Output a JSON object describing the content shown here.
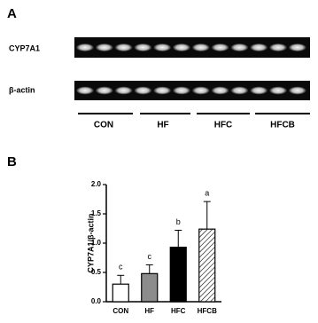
{
  "panel_a": {
    "label": "A",
    "gel_labels": [
      "CYP7A1",
      "β-actin"
    ],
    "groups": [
      "CON",
      "HF",
      "HFC",
      "HFCB"
    ]
  },
  "panel_b": {
    "label": "B"
  },
  "chart_data": {
    "type": "bar",
    "y_label": "CYP7A1/β-actin",
    "categories": [
      "CON",
      "HF",
      "HFC",
      "HFCB"
    ],
    "values": [
      0.3,
      0.48,
      0.93,
      1.24
    ],
    "errors": [
      0.15,
      0.15,
      0.29,
      0.47
    ],
    "annotations": [
      "c",
      "c",
      "b",
      "a"
    ],
    "colors": [
      "#ffffff",
      "#8c8c8c",
      "#000000",
      "#ffffff"
    ],
    "hatch": [
      false,
      false,
      false,
      true
    ],
    "ylim": [
      0,
      2
    ],
    "yticks": [
      {
        "value": 0,
        "label": "0.0"
      },
      0.5,
      {
        "value": 1,
        "label": "1.0"
      },
      1.5,
      {
        "value": 2,
        "label": "2.0"
      }
    ],
    "grid": false
  }
}
